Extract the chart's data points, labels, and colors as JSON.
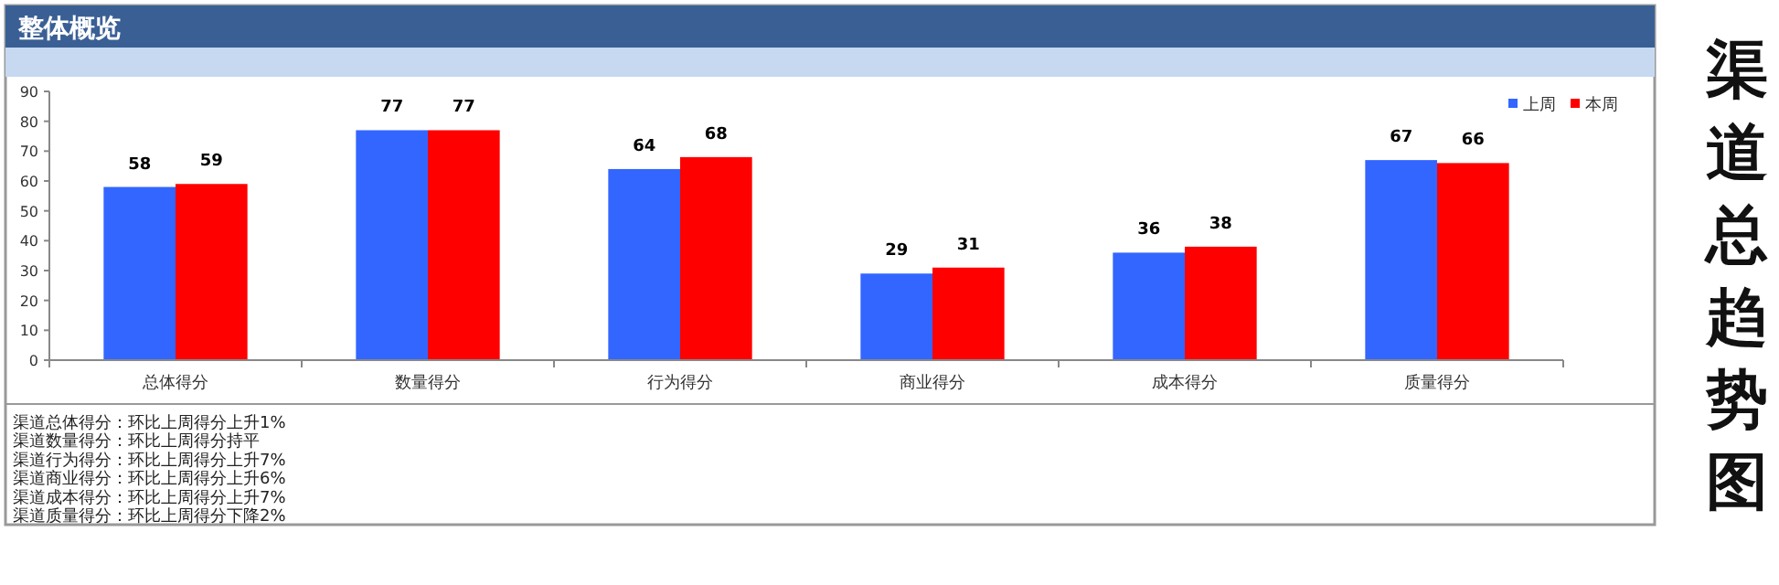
{
  "chart_data": {
    "type": "bar",
    "title": "渠道总趋势图",
    "subtitle": "整体概览",
    "categories": [
      "总体得分",
      "数量得分",
      "行为得分",
      "商业得分",
      "成本得分",
      "质量得分"
    ],
    "series": [
      {
        "name": "上周",
        "color": "#3366ff",
        "values": [
          58,
          77,
          64,
          29,
          36,
          67
        ]
      },
      {
        "name": "本周",
        "color": "#ff0000",
        "values": [
          59,
          77,
          68,
          31,
          38,
          66
        ]
      }
    ],
    "ylim": [
      0,
      90
    ],
    "yticks": [
      0,
      10,
      20,
      30,
      40,
      50,
      60,
      70,
      80,
      90
    ],
    "grid": false,
    "legend": "top right",
    "data_labels": true,
    "annotations": [
      "渠道总体得分：环比上周得分上升1%",
      "渠道数量得分：环比上周得分持平",
      "渠道行为得分：环比上周得分上升7%",
      "渠道商业得分：环比上周得分上升6%",
      "渠道成本得分：环比上周得分上升7%",
      "渠道质量得分：环比上周得分下降2%"
    ]
  }
}
